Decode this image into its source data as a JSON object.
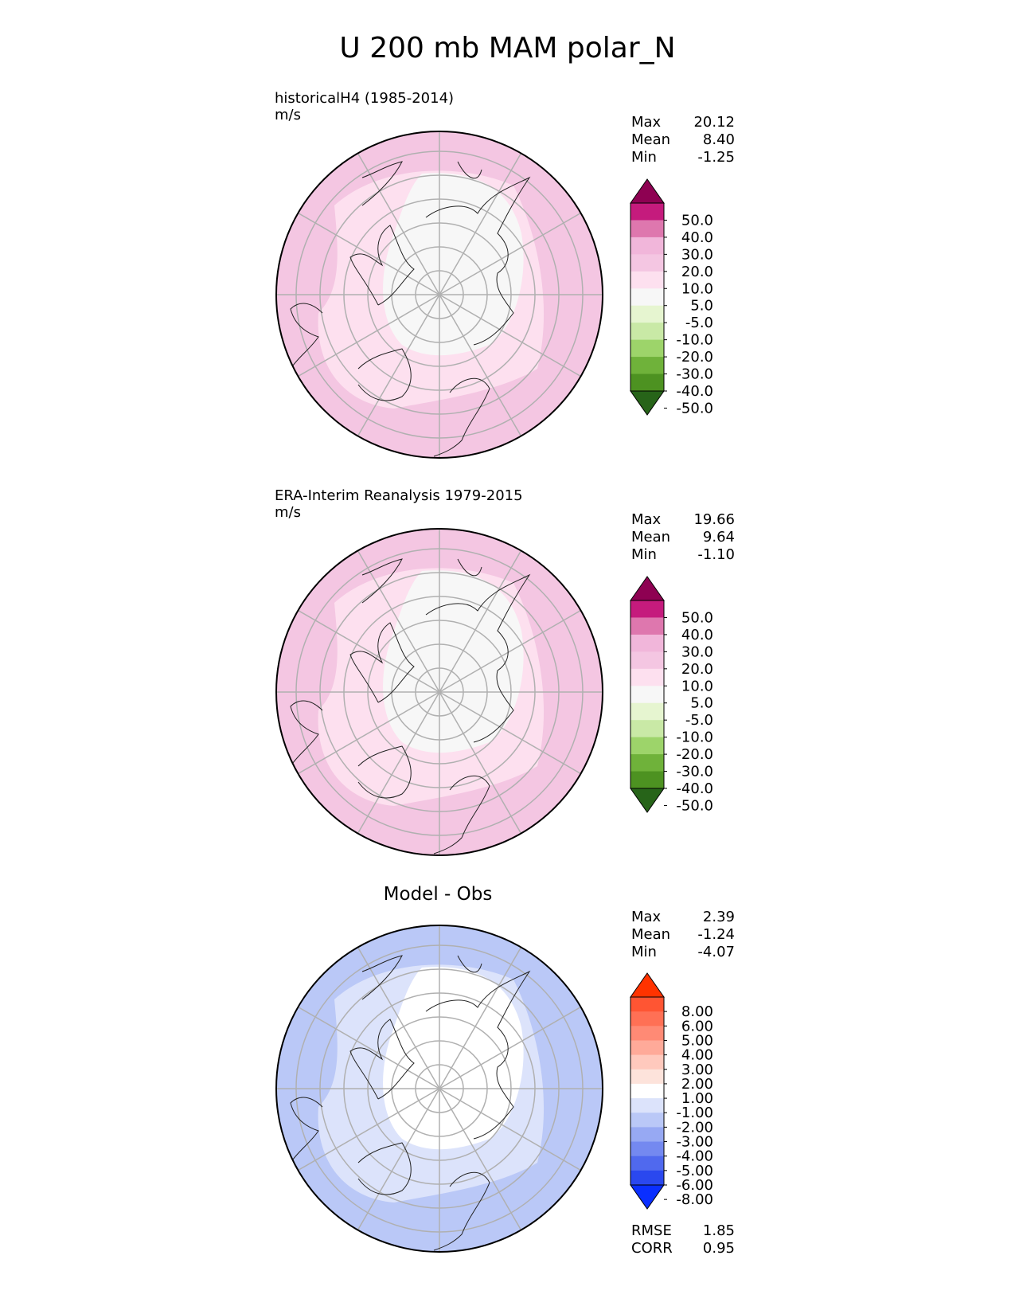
{
  "title": "U 200 mb MAM polar_N",
  "panels": [
    {
      "id": "model",
      "label": "historicalH4 (1985-2014)",
      "units": "m/s",
      "center_title": "",
      "stats": {
        "max_label": "Max",
        "max": "20.12",
        "mean_label": "Mean",
        "mean": "8.40",
        "min_label": "Min",
        "min": "-1.25"
      },
      "colorbar": {
        "ticks": [
          "50.0",
          "40.0",
          "30.0",
          "20.0",
          "10.0",
          "5.0",
          "-5.0",
          "-10.0",
          "-20.0",
          "-30.0",
          "-40.0",
          "-50.0"
        ],
        "colors": [
          "#8e0152",
          "#c51b7d",
          "#de77ae",
          "#f1b6da",
          "#f4c6e2",
          "#fde0ef",
          "#f7f7f7",
          "#e6f5d0",
          "#c9e9a6",
          "#9dd46a",
          "#6fb23a",
          "#4d9221",
          "#276419"
        ]
      },
      "bands": [
        "#f4c6e2",
        "#fde0ef",
        "#f7f7f7"
      ]
    },
    {
      "id": "obs",
      "label": "ERA-Interim Reanalysis 1979-2015",
      "units": "m/s",
      "center_title": "",
      "stats": {
        "max_label": "Max",
        "max": "19.66",
        "mean_label": "Mean",
        "mean": "9.64",
        "min_label": "Min",
        "min": "-1.10"
      },
      "colorbar": {
        "ticks": [
          "50.0",
          "40.0",
          "30.0",
          "20.0",
          "10.0",
          "5.0",
          "-5.0",
          "-10.0",
          "-20.0",
          "-30.0",
          "-40.0",
          "-50.0"
        ],
        "colors": [
          "#8e0152",
          "#c51b7d",
          "#de77ae",
          "#f1b6da",
          "#f4c6e2",
          "#fde0ef",
          "#f7f7f7",
          "#e6f5d0",
          "#c9e9a6",
          "#9dd46a",
          "#6fb23a",
          "#4d9221",
          "#276419"
        ]
      },
      "bands": [
        "#f4c6e2",
        "#fde0ef",
        "#f7f7f7"
      ]
    },
    {
      "id": "diff",
      "label": "",
      "units": "",
      "center_title": "Model - Obs",
      "stats": {
        "max_label": "Max",
        "max": "2.39",
        "mean_label": "Mean",
        "mean": "-1.24",
        "min_label": "Min",
        "min": "-4.07"
      },
      "colorbar": {
        "ticks": [
          "8.00",
          "6.00",
          "5.00",
          "4.00",
          "3.00",
          "2.00",
          "1.00",
          "-1.00",
          "-2.00",
          "-3.00",
          "-4.00",
          "-5.00",
          "-6.00",
          "-8.00"
        ],
        "colors": [
          "#ff3300",
          "#ff5533",
          "#ff7055",
          "#ff8a75",
          "#ffaa99",
          "#ffc9bd",
          "#fde3db",
          "#ffffff",
          "#dce3fb",
          "#bac8f7",
          "#97a9f3",
          "#7489f0",
          "#5069ee",
          "#2a48ef",
          "#0a2fff"
        ]
      },
      "bands": [
        "#bac8f7",
        "#dce3fb",
        "#ffffff"
      ]
    }
  ],
  "bottom_stats": {
    "rmse_label": "RMSE",
    "rmse": "1.85",
    "corr_label": "CORR",
    "corr": "0.95"
  }
}
